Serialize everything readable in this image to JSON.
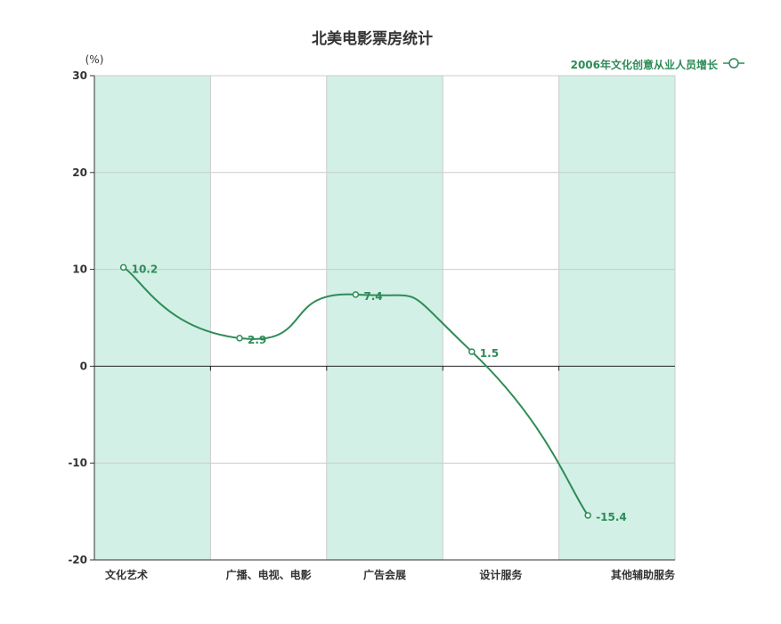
{
  "colors": {
    "line": "#2e8b57",
    "band": "#d2f0e6",
    "grid": "#cccccc",
    "axis": "#333333",
    "zero_line": "#222222",
    "text": "#333333"
  },
  "chart_data": {
    "type": "line",
    "title": "北美电影票房统计",
    "y_unit": "(%)",
    "ylim": [
      -20,
      30
    ],
    "yticks": [
      -20,
      -10,
      0,
      10,
      20,
      30
    ],
    "categories": [
      "文化艺术",
      "广播、电视、电影",
      "广告会展",
      "设计服务",
      "其他辅助服务"
    ],
    "series": [
      {
        "name": "2006年文化创意从业人员增长",
        "values": [
          10.2,
          2.9,
          7.4,
          1.5,
          -15.4
        ]
      }
    ],
    "legend_position": "top-right",
    "smooth": true,
    "grid": true,
    "alternating_bands": true
  }
}
